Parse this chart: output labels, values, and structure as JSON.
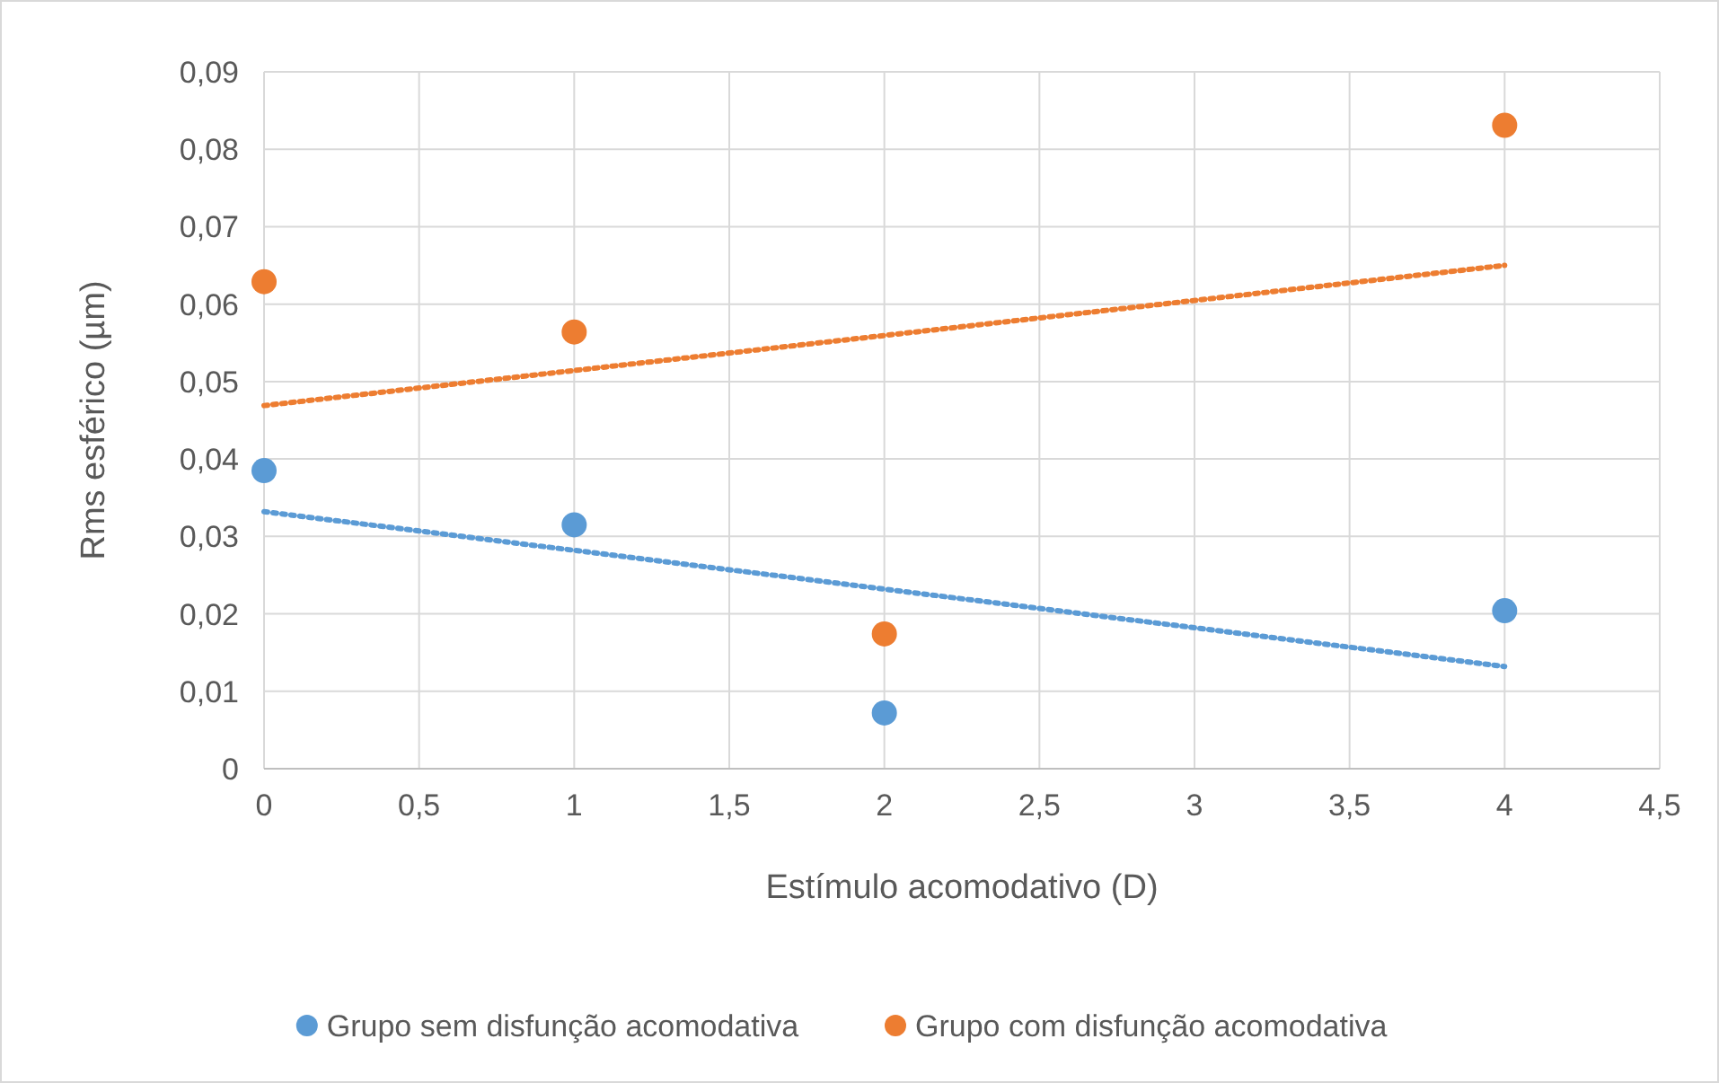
{
  "chart_data": {
    "type": "scatter",
    "xlabel": "Estímulo acomodativo (D)",
    "ylabel": "Rms esférico (µm)",
    "xlim": [
      0,
      4.5
    ],
    "xticks": [
      0,
      {
        "value": 0.5,
        "label": "0,5"
      },
      1,
      {
        "value": 1.5,
        "label": "1,5"
      },
      2,
      {
        "value": 2.5,
        "label": "2,5"
      },
      3,
      {
        "value": 3.5,
        "label": "3,5"
      },
      4,
      {
        "value": 4.5,
        "label": "4,5"
      }
    ],
    "ylim": [
      0,
      0.09
    ],
    "yticks": [
      0,
      {
        "value": 0.01,
        "label": "0,01"
      },
      {
        "value": 0.02,
        "label": "0,02"
      },
      {
        "value": 0.03,
        "label": "0,03"
      },
      {
        "value": 0.04,
        "label": "0,04"
      },
      {
        "value": 0.05,
        "label": "0,05"
      },
      {
        "value": 0.06,
        "label": "0,06"
      },
      {
        "value": 0.07,
        "label": "0,07"
      },
      {
        "value": 0.08,
        "label": "0,08"
      },
      {
        "value": 0.09,
        "label": "0,09"
      }
    ],
    "grid": true,
    "legend": "bottom",
    "marker": "circle",
    "series": [
      {
        "name": "Grupo sem disfunção acomodativa",
        "color": "#5b9bd5",
        "x": [
          0,
          1,
          2,
          4
        ],
        "values": [
          0.0385,
          0.0315,
          0.0072,
          0.0204
        ]
      },
      {
        "name": "Grupo com disfunção acomodativa",
        "color": "#ed7d31",
        "x": [
          0,
          1,
          2,
          4
        ],
        "values": [
          0.0629,
          0.0564,
          0.0174,
          0.0831
        ]
      },
      {
        "type": "line",
        "color": "#5b9bd5",
        "x": [
          0,
          4
        ],
        "values": [
          0.0332,
          0.0132
        ],
        "marker": "none",
        "line_style": "dotted"
      },
      {
        "type": "line",
        "color": "#ed7d31",
        "x": [
          0,
          4
        ],
        "values": [
          0.0469,
          0.065
        ],
        "marker": "none",
        "line_style": "dotted"
      }
    ]
  }
}
